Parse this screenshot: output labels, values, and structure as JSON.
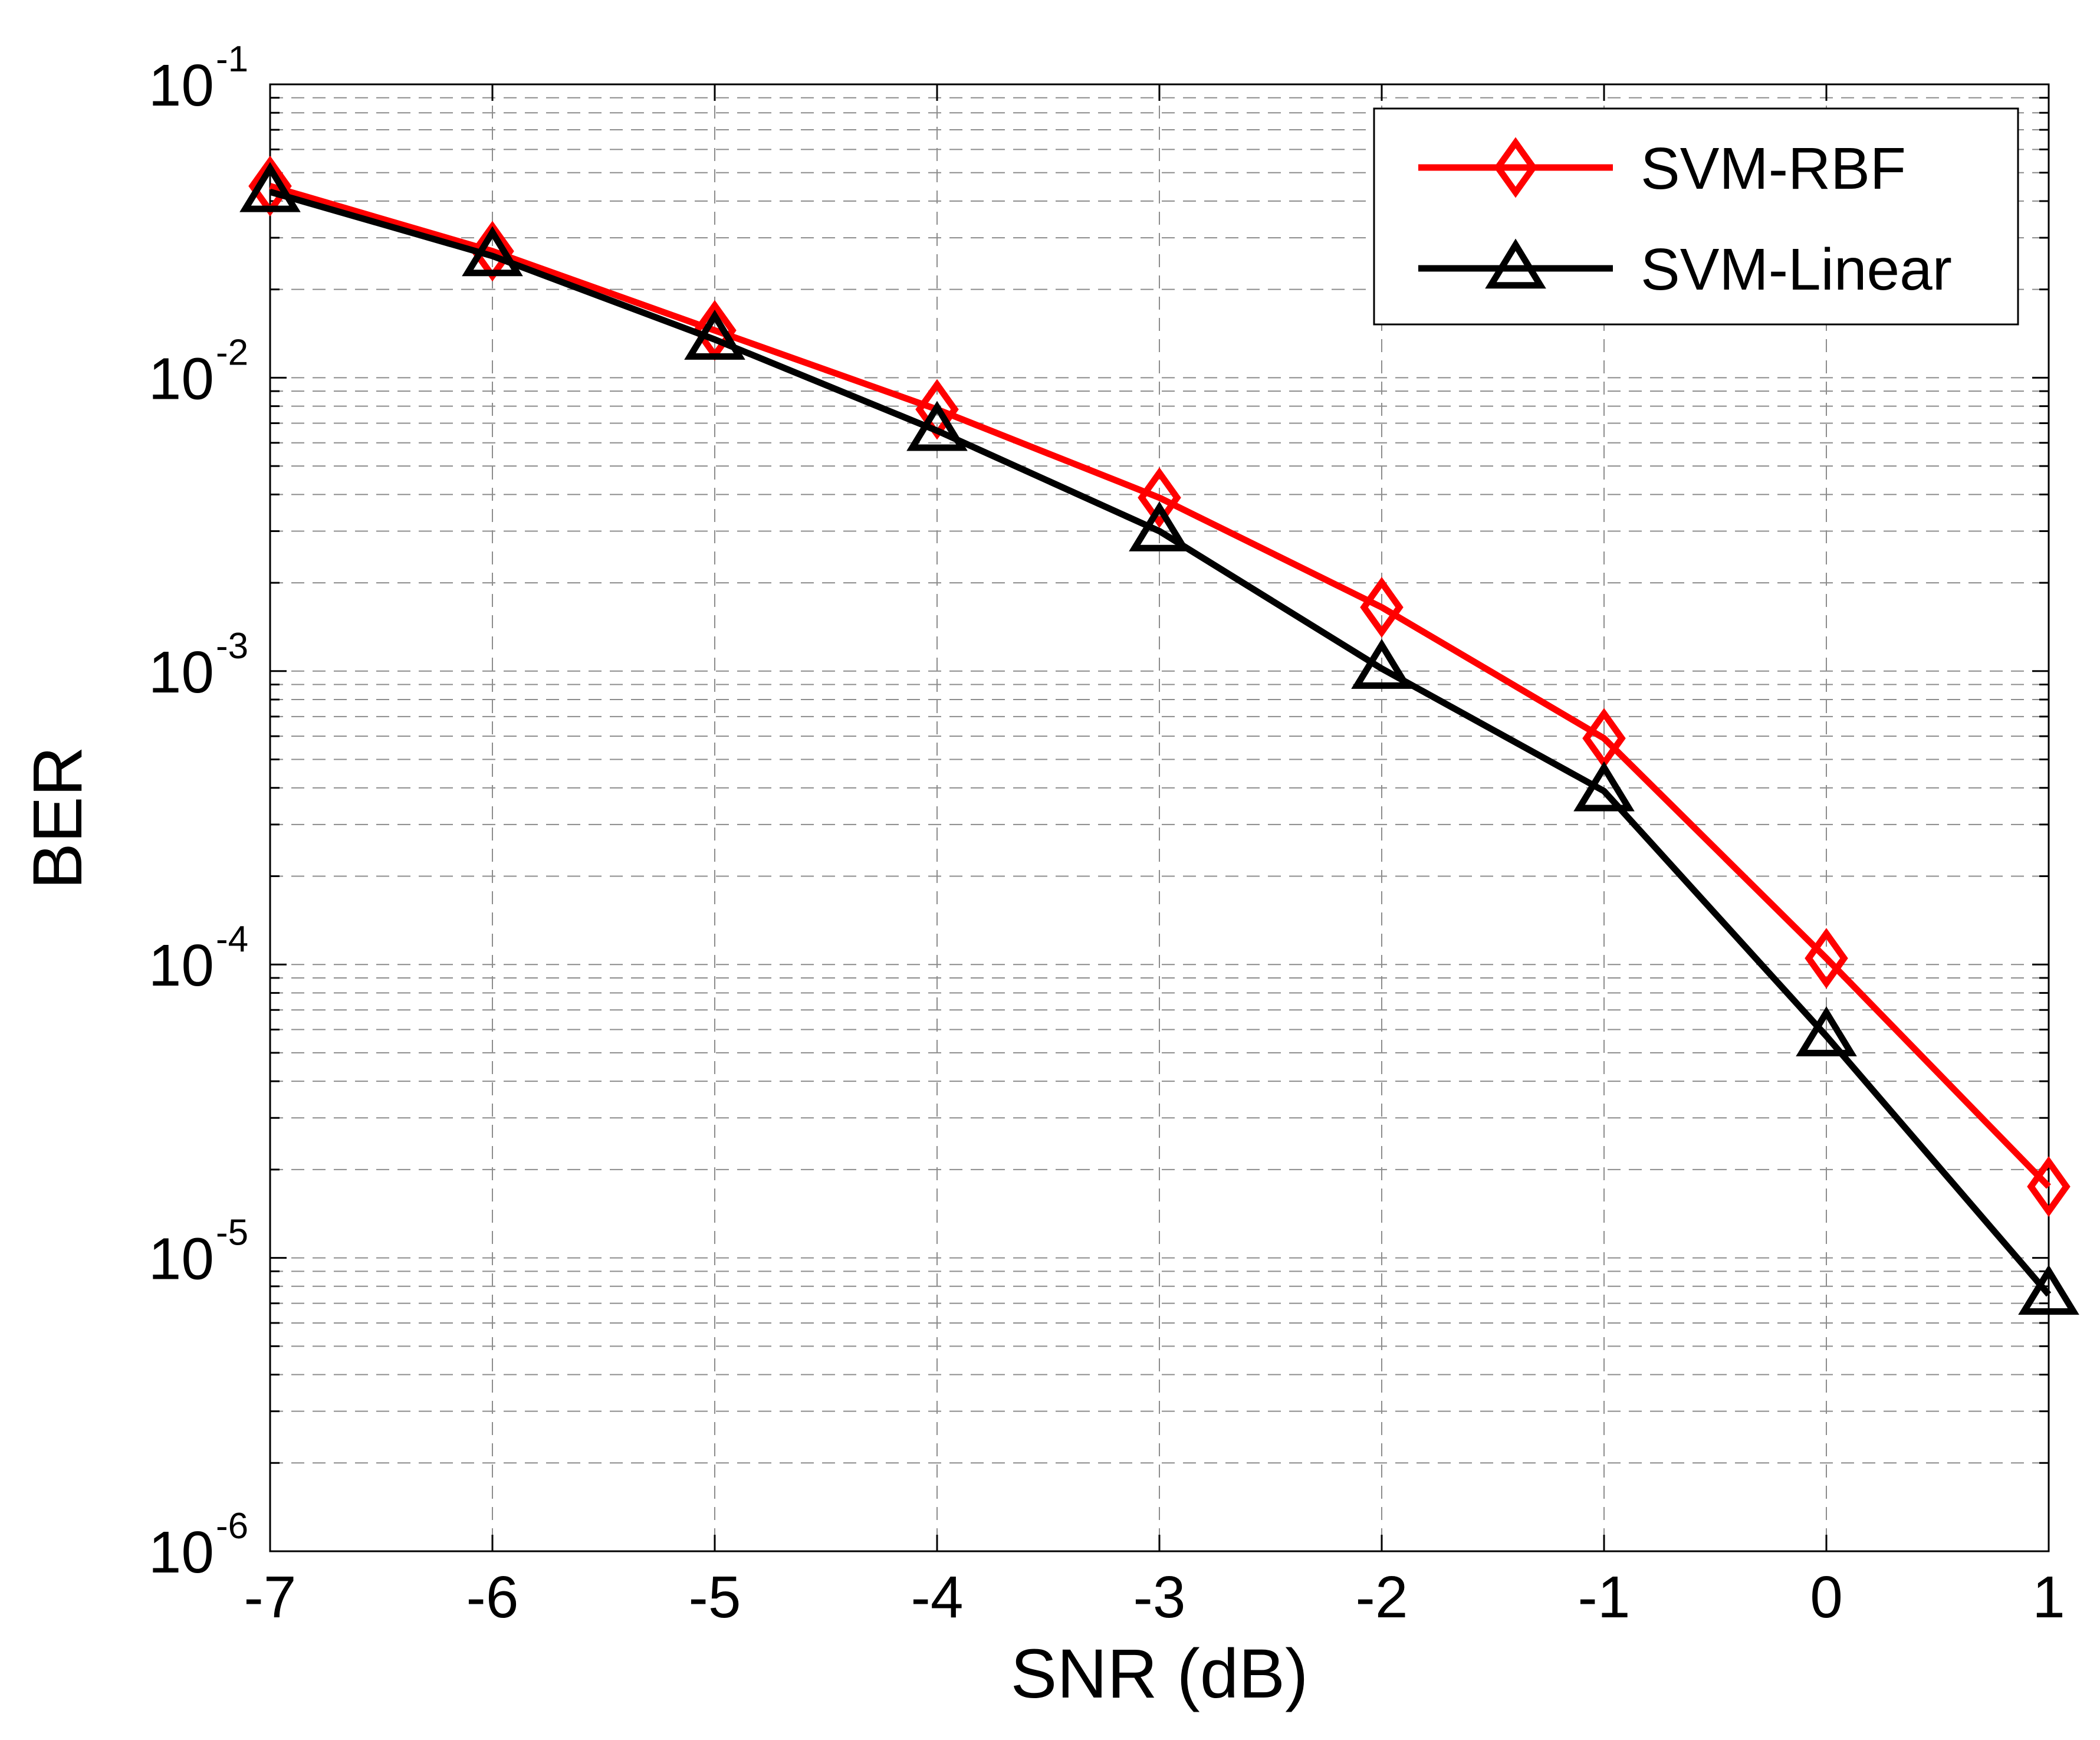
{
  "chart_data": {
    "type": "line",
    "xlabel": "SNR (dB)",
    "ylabel": "BER",
    "x": [
      -7,
      -6,
      -5,
      -4,
      -3,
      -2,
      -1,
      0,
      1
    ],
    "xlim": [
      -7,
      1
    ],
    "ylim": [
      1e-06,
      0.1
    ],
    "yscale": "log",
    "grid": true,
    "legend_position": "top-right",
    "x_tick_labels": [
      "-7",
      "-6",
      "-5",
      "-4",
      "-3",
      "-2",
      "-1",
      "0",
      "1"
    ],
    "y_tick_labels": [
      {
        "base": "10",
        "exp": "-6"
      },
      {
        "base": "10",
        "exp": "-5"
      },
      {
        "base": "10",
        "exp": "-4"
      },
      {
        "base": "10",
        "exp": "-3"
      },
      {
        "base": "10",
        "exp": "-2"
      },
      {
        "base": "10",
        "exp": "-1"
      }
    ],
    "series": [
      {
        "name": "SVM-RBF",
        "color": "#ff0000",
        "marker": "diamond",
        "values": [
          0.045,
          0.027,
          0.0145,
          0.0078,
          0.0039,
          0.00165,
          0.00059,
          0.000105,
          1.75e-05
        ]
      },
      {
        "name": "SVM-Linear",
        "color": "#000000",
        "marker": "triangle",
        "values": [
          0.043,
          0.026,
          0.0135,
          0.0066,
          0.003,
          0.00102,
          0.00039,
          5.7e-05,
          7.5e-06
        ]
      }
    ]
  }
}
